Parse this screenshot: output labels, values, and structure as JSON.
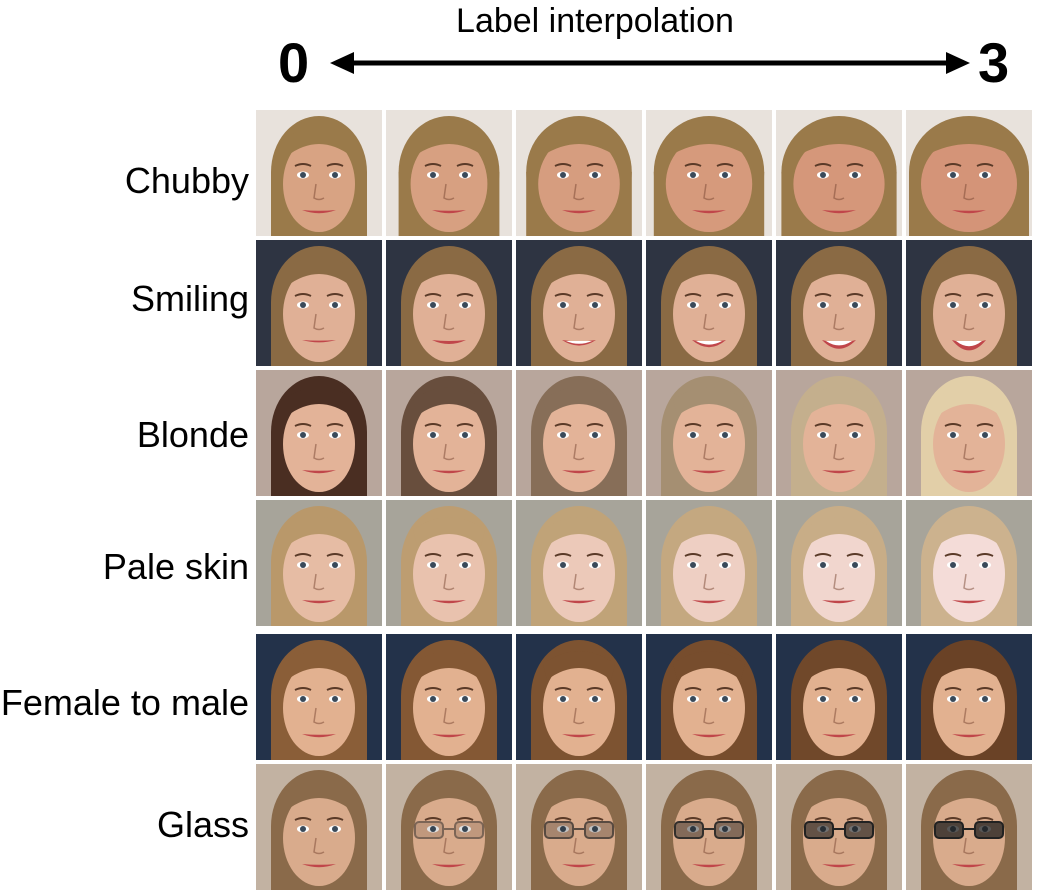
{
  "header": {
    "title": "Label interpolation",
    "start_label": "0",
    "end_label": "3"
  },
  "rows": [
    {
      "label": "Chubby",
      "hair": "#9a7a4a",
      "skin": "#d8a383",
      "bg": "#e8e2dc",
      "variant": "chubby"
    },
    {
      "label": "Smiling",
      "hair": "#8a6a44",
      "skin": "#e0b096",
      "bg": "#2e3442",
      "variant": "smile"
    },
    {
      "label": "Blonde",
      "hair": "#4a2e22",
      "skin": "#e3b398",
      "bg": "#b8a69c",
      "variant": "blonde"
    },
    {
      "label": "Pale skin",
      "hair": "#b9986a",
      "skin": "#e6bca4",
      "bg": "#a7a49a",
      "variant": "pale"
    },
    {
      "label": "Female to male",
      "hair": "#8a5e38",
      "skin": "#e2b190",
      "bg": "#23324a",
      "variant": "male"
    },
    {
      "label": "Glass",
      "hair": "#8a6a4a",
      "skin": "#d9ab8c",
      "bg": "#c2b2a2",
      "variant": "glass"
    }
  ],
  "columns": 6
}
